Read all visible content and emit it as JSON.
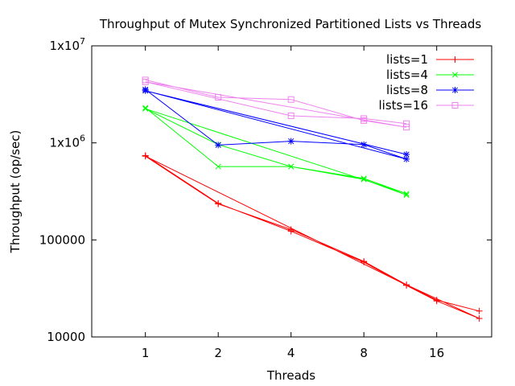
{
  "chart_data": {
    "type": "line",
    "title": "Throughput of Mutex Synchronized Partitioned Lists vs Threads",
    "xlabel": "Threads",
    "ylabel": "Throughput (op/sec)",
    "x_scale": "log2",
    "y_scale": "log10",
    "xlim": [
      0.6,
      27
    ],
    "ylim": [
      10000,
      10000000
    ],
    "x_ticks": [
      {
        "value": 1,
        "label": "1"
      },
      {
        "value": 2,
        "label": "2"
      },
      {
        "value": 4,
        "label": "4"
      },
      {
        "value": 8,
        "label": "8"
      },
      {
        "value": 16,
        "label": "16"
      }
    ],
    "y_ticks": [
      {
        "value": 10000,
        "label": "10000",
        "sup": ""
      },
      {
        "value": 100000,
        "label": "100000",
        "sup": ""
      },
      {
        "value": 1000000,
        "label": "1x10",
        "sup": "6"
      },
      {
        "value": 10000000,
        "label": "1x10",
        "sup": "7"
      }
    ],
    "legend_position": "top-right",
    "grid": false,
    "series": [
      {
        "name": "lists=1",
        "color": "#ff0000",
        "marker": "plus",
        "x": [
          1,
          2,
          4,
          8,
          12,
          16,
          24,
          12,
          8,
          4,
          2,
          1,
          16,
          24
        ],
        "y": [
          740000,
          238000,
          123000,
          59000,
          34000,
          23500,
          15500,
          34500,
          60000,
          128000,
          235000,
          730000,
          24000,
          18500
        ]
      },
      {
        "name": "lists=4",
        "color": "#00ff00",
        "marker": "x",
        "x": [
          1,
          2,
          4,
          8,
          12,
          1,
          2,
          4,
          8,
          12
        ],
        "y": [
          2300000,
          570000,
          570000,
          430000,
          300000,
          2250000,
          960000,
          570000,
          420000,
          290000
        ]
      },
      {
        "name": "lists=8",
        "color": "#0000ff",
        "marker": "star",
        "x": [
          1,
          2,
          4,
          8,
          12,
          1,
          12
        ],
        "y": [
          3550000,
          950000,
          1040000,
          960000,
          680000,
          3450000,
          760000
        ]
      },
      {
        "name": "lists=16",
        "color": "#ee82ee",
        "marker": "square",
        "x": [
          1,
          2,
          4,
          8,
          12,
          1,
          4,
          8,
          12
        ],
        "y": [
          4450000,
          2950000,
          2800000,
          1700000,
          1450000,
          4250000,
          1900000,
          1780000,
          1580000
        ]
      }
    ]
  }
}
